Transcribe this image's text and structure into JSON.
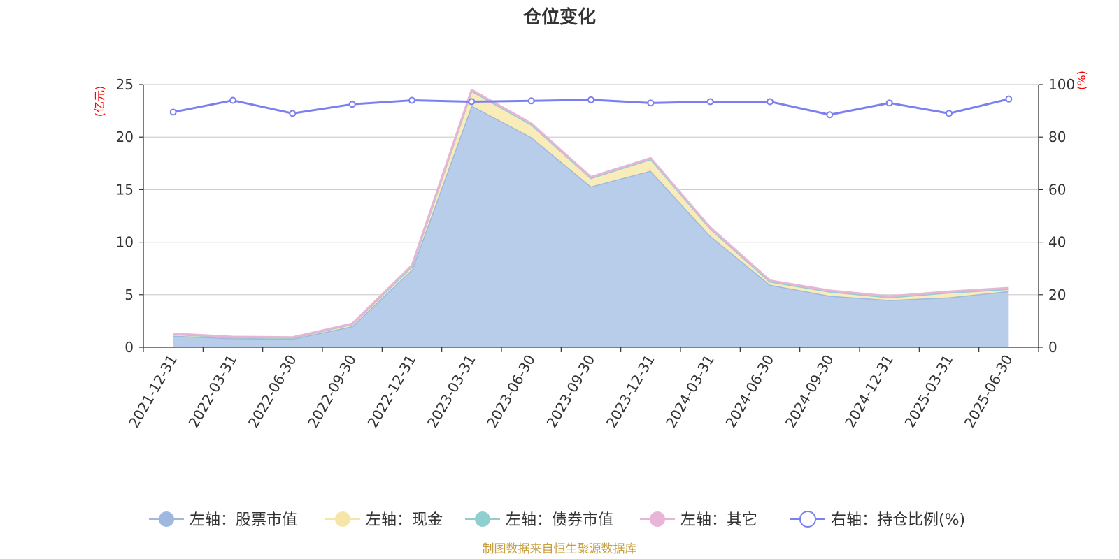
{
  "chart_data": {
    "type": "area",
    "title": "仓位变化",
    "source": "制图数据来自恒生聚源数据库",
    "left_axis": {
      "unit_label": "(亿元)",
      "range": [
        0,
        25
      ],
      "ticks": [
        0,
        5,
        10,
        15,
        20,
        25
      ]
    },
    "right_axis": {
      "unit_label": "(%)",
      "range": [
        0,
        100
      ],
      "ticks": [
        0,
        20,
        40,
        60,
        80,
        100
      ]
    },
    "categories": [
      "2021-12-31",
      "2022-03-31",
      "2022-06-30",
      "2022-09-30",
      "2022-12-31",
      "2023-03-31",
      "2023-06-30",
      "2023-09-30",
      "2023-12-31",
      "2024-03-31",
      "2024-06-30",
      "2024-09-30",
      "2024-12-31",
      "2025-03-31",
      "2025-06-30"
    ],
    "grid": true,
    "legend_position": "bottom",
    "series": [
      {
        "name": "左轴：股票市值",
        "axis": "left",
        "stack": true,
        "color": "#9eb8e0",
        "fill": "#b8cdea",
        "values": [
          1.1,
          0.85,
          0.8,
          2.0,
          7.4,
          23.0,
          20.0,
          15.3,
          16.8,
          10.6,
          5.95,
          4.9,
          4.5,
          4.75,
          5.35
        ]
      },
      {
        "name": "左轴：现金",
        "axis": "left",
        "stack": true,
        "color": "#f5e6a8",
        "fill": "#faecb8",
        "values": [
          0.15,
          0.1,
          0.1,
          0.2,
          0.3,
          1.4,
          1.2,
          0.8,
          1.1,
          0.7,
          0.3,
          0.4,
          0.25,
          0.45,
          0.2
        ]
      },
      {
        "name": "左轴：债券市值",
        "axis": "left",
        "stack": true,
        "color": "#8fcfd0",
        "fill": "#8fcfd0",
        "values": [
          0,
          0,
          0,
          0,
          0,
          0,
          0,
          0,
          0,
          0,
          0,
          0,
          0,
          0,
          0
        ]
      },
      {
        "name": "左轴：其它",
        "axis": "left",
        "stack": true,
        "color": "#e8b4d8",
        "fill": "#e8b4d8",
        "values": [
          0.05,
          0.05,
          0.05,
          0.05,
          0.1,
          0.1,
          0.1,
          0.1,
          0.1,
          0.1,
          0.1,
          0.1,
          0.1,
          0.1,
          0.1
        ]
      },
      {
        "name": "右轴：持仓比例(%)",
        "axis": "right",
        "stack": false,
        "color": "#7b7ff0",
        "values": [
          89.5,
          94.0,
          89.0,
          92.5,
          94.0,
          93.5,
          93.8,
          94.2,
          93.0,
          93.5,
          93.5,
          88.5,
          93.0,
          89.0,
          94.5
        ]
      }
    ]
  }
}
